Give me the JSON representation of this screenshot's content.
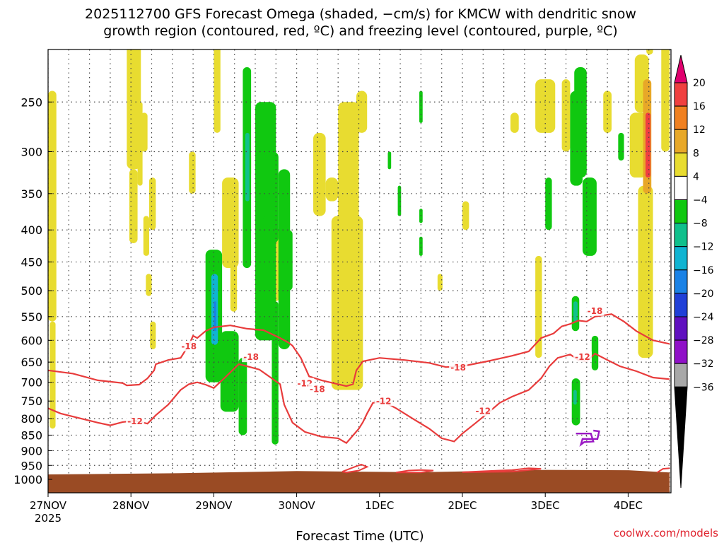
{
  "chart_data": {
    "type": "heatmap",
    "title_line1": "2025112700 GFS Forecast Omega (shaded, −cm/s) for KMCW with dendritic snow",
    "title_line2": "growth region (contoured, red, ºC) and freezing level (contoured, purple, ºC)",
    "xlabel": "Forecast Time (UTC)",
    "credit": "coolwx.com/models",
    "x_ticks": [
      "27NOV",
      "28NOV",
      "29NOV",
      "30NOV",
      "1DEC",
      "2DEC",
      "3DEC",
      "4DEC"
    ],
    "x_start_year": "2025",
    "xlim_days": [
      0,
      7.5
    ],
    "y_ticks": [
      250,
      300,
      350,
      400,
      450,
      500,
      550,
      600,
      650,
      700,
      750,
      800,
      850,
      900,
      950,
      1000
    ],
    "ylim_hpa": [
      200,
      1020
    ],
    "grid": true,
    "colorbar": {
      "levels": [
        "20",
        "16",
        "12",
        "8",
        "4",
        "−4",
        "−8",
        "−12",
        "−16",
        "−20",
        "−24",
        "−28",
        "−32",
        "−36"
      ],
      "colors": [
        "#e0006e",
        "#f04040",
        "#f08020",
        "#e8a828",
        "#e8dc30",
        "#ffffff",
        "#10c810",
        "#10c08c",
        "#10b4d2",
        "#1a82e6",
        "#2040d8",
        "#6010c0",
        "#9010c8",
        "#a8a8a8",
        "#000000"
      ]
    },
    "omega_colors": {
      "up_weak": "#10c810",
      "up_mod": "#10c08c",
      "up_strong": "#10b4d2",
      "up_stronger": "#1a82e6",
      "down_weak": "#e8dc30",
      "down_mod": "#e8a828",
      "down_strong": "#f08020",
      "down_stronger": "#f04040"
    },
    "contour_labels": [
      "-12",
      "-18",
      "-18",
      "-12",
      "-18",
      "-12",
      "-18",
      "-12",
      "-12",
      "-18"
    ],
    "contours": {
      "minus18": [
        [
          0,
          670
        ],
        [
          0.3,
          678
        ],
        [
          0.6,
          695
        ],
        [
          0.9,
          702
        ],
        [
          0.95,
          708
        ],
        [
          1.1,
          706
        ],
        [
          1.2,
          690
        ],
        [
          1.28,
          670
        ],
        [
          1.3,
          655
        ],
        [
          1.45,
          645
        ],
        [
          1.6,
          640
        ],
        [
          1.7,
          610
        ],
        [
          1.75,
          590
        ],
        [
          1.8,
          595
        ],
        [
          1.9,
          580
        ],
        [
          2.0,
          572
        ],
        [
          2.2,
          568
        ],
        [
          2.4,
          575
        ],
        [
          2.6,
          578
        ],
        [
          2.8,
          595
        ],
        [
          2.9,
          605
        ],
        [
          2.95,
          612
        ],
        [
          3.05,
          640
        ],
        [
          3.15,
          685
        ],
        [
          3.3,
          695
        ],
        [
          3.5,
          705
        ],
        [
          3.6,
          710
        ],
        [
          3.68,
          705
        ],
        [
          3.72,
          670
        ],
        [
          3.8,
          648
        ],
        [
          4.0,
          640
        ],
        [
          4.3,
          645
        ],
        [
          4.6,
          652
        ],
        [
          4.8,
          662
        ],
        [
          5.0,
          660
        ],
        [
          5.3,
          648
        ],
        [
          5.6,
          635
        ],
        [
          5.8,
          625
        ],
        [
          5.95,
          595
        ],
        [
          6.1,
          585
        ],
        [
          6.2,
          570
        ],
        [
          6.3,
          565
        ],
        [
          6.4,
          558
        ],
        [
          6.5,
          560
        ],
        [
          6.6,
          550
        ],
        [
          6.8,
          545
        ],
        [
          6.95,
          560
        ],
        [
          7.1,
          580
        ],
        [
          7.3,
          600
        ],
        [
          7.5,
          608
        ]
      ],
      "minus12": [
        [
          0,
          770
        ],
        [
          0.15,
          785
        ],
        [
          0.4,
          800
        ],
        [
          0.6,
          812
        ],
        [
          0.75,
          820
        ],
        [
          0.9,
          810
        ],
        [
          1.05,
          806
        ],
        [
          1.2,
          815
        ],
        [
          1.3,
          790
        ],
        [
          1.45,
          760
        ],
        [
          1.6,
          720
        ],
        [
          1.7,
          705
        ],
        [
          1.8,
          700
        ],
        [
          1.9,
          706
        ],
        [
          2.0,
          715
        ],
        [
          2.15,
          685
        ],
        [
          2.3,
          655
        ],
        [
          2.4,
          660
        ],
        [
          2.55,
          668
        ],
        [
          2.7,
          690
        ],
        [
          2.8,
          705
        ],
        [
          2.85,
          760
        ],
        [
          2.95,
          812
        ],
        [
          3.1,
          840
        ],
        [
          3.3,
          855
        ],
        [
          3.5,
          860
        ],
        [
          3.6,
          875
        ],
        [
          3.65,
          860
        ],
        [
          3.75,
          830
        ],
        [
          3.8,
          810
        ],
        [
          3.85,
          785
        ],
        [
          3.92,
          755
        ],
        [
          4.05,
          752
        ],
        [
          4.2,
          770
        ],
        [
          4.4,
          800
        ],
        [
          4.6,
          830
        ],
        [
          4.75,
          860
        ],
        [
          4.9,
          870
        ],
        [
          5.0,
          845
        ],
        [
          5.15,
          815
        ],
        [
          5.3,
          785
        ],
        [
          5.45,
          755
        ],
        [
          5.6,
          738
        ],
        [
          5.8,
          720
        ],
        [
          5.95,
          690
        ],
        [
          6.05,
          660
        ],
        [
          6.15,
          640
        ],
        [
          6.3,
          632
        ],
        [
          6.4,
          645
        ],
        [
          6.5,
          648
        ],
        [
          6.6,
          630
        ],
        [
          6.75,
          645
        ],
        [
          6.9,
          660
        ],
        [
          7.1,
          672
        ],
        [
          7.3,
          688
        ],
        [
          7.5,
          692
        ]
      ]
    }
  }
}
